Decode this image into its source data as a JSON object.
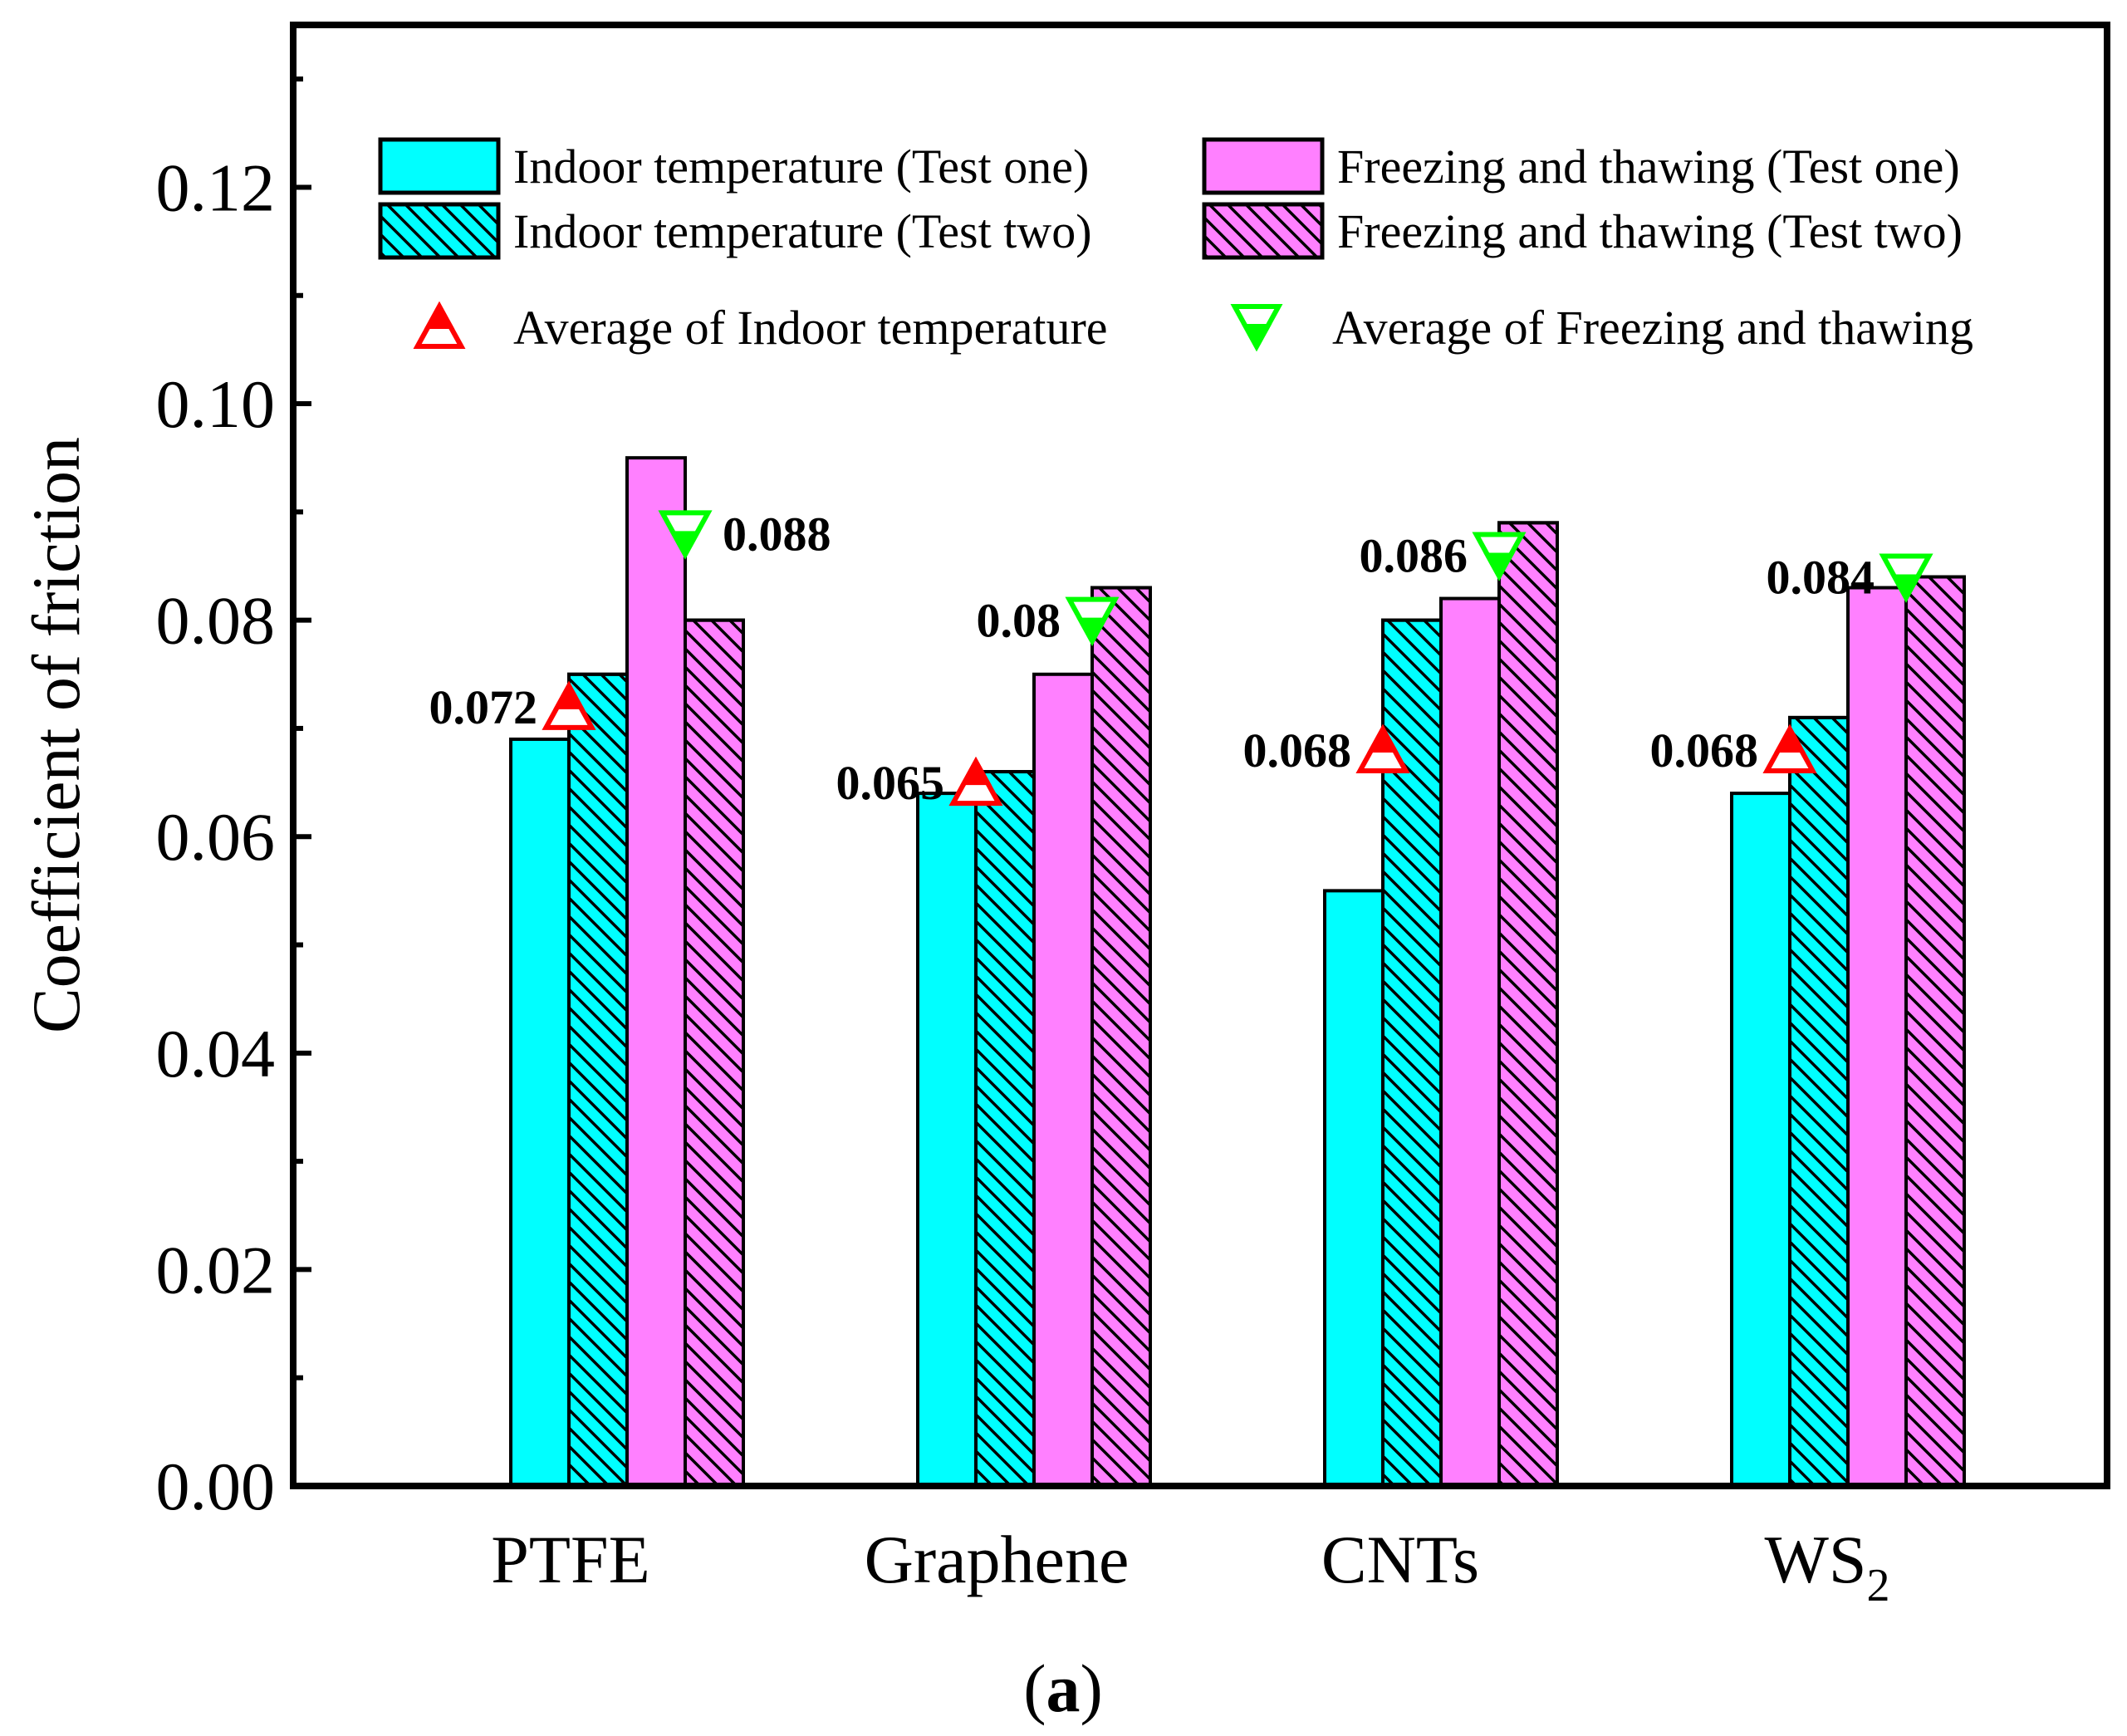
{
  "chart_data": {
    "type": "bar",
    "ylabel": "Coefficient of friction",
    "xlabel": "",
    "ylim": [
      0,
      0.135
    ],
    "yticks": [
      "0.00",
      "0.02",
      "0.04",
      "0.06",
      "0.08",
      "0.10",
      "0.12"
    ],
    "ytick_values": [
      0,
      0.02,
      0.04,
      0.06,
      0.08,
      0.1,
      0.12
    ],
    "categories": [
      {
        "base": "PTFE",
        "sub": ""
      },
      {
        "base": "Graphene",
        "sub": ""
      },
      {
        "base": "CNTs",
        "sub": ""
      },
      {
        "base": "WS",
        "sub": "2"
      }
    ],
    "series": [
      {
        "name": "Indoor temperature (Test one)",
        "color": "#00FFFF",
        "hatch": false,
        "values": [
          0.069,
          0.064,
          0.055,
          0.064
        ]
      },
      {
        "name": "Indoor temperature (Test two)",
        "color": "#00FFFF",
        "hatch": true,
        "values": [
          0.075,
          0.066,
          0.08,
          0.071
        ]
      },
      {
        "name": "Freezing and thawing (Test one)",
        "color": "#FF80FF",
        "hatch": false,
        "values": [
          0.095,
          0.075,
          0.082,
          0.083
        ]
      },
      {
        "name": "Freezing and thawing (Test two)",
        "color": "#FF80FF",
        "hatch": true,
        "values": [
          0.08,
          0.083,
          0.089,
          0.084
        ]
      }
    ],
    "averages": [
      {
        "name": "Average of Indoor temperature",
        "marker": "triangle-up",
        "color": "#FF0000",
        "values": [
          0.072,
          0.065,
          0.068,
          0.068
        ],
        "labels": [
          "0.072",
          "0.065",
          "0.068",
          "0.068"
        ]
      },
      {
        "name": "Average of Freezing and thawing",
        "marker": "triangle-down",
        "color": "#00FF00",
        "values": [
          0.088,
          0.08,
          0.086,
          0.084
        ],
        "labels": [
          "0.088",
          "0.08",
          "0.086",
          "0.084"
        ]
      }
    ],
    "legend_position": "top",
    "grid": false
  },
  "subplot_label": {
    "open": "(",
    "letter": "a",
    "close": ")"
  }
}
